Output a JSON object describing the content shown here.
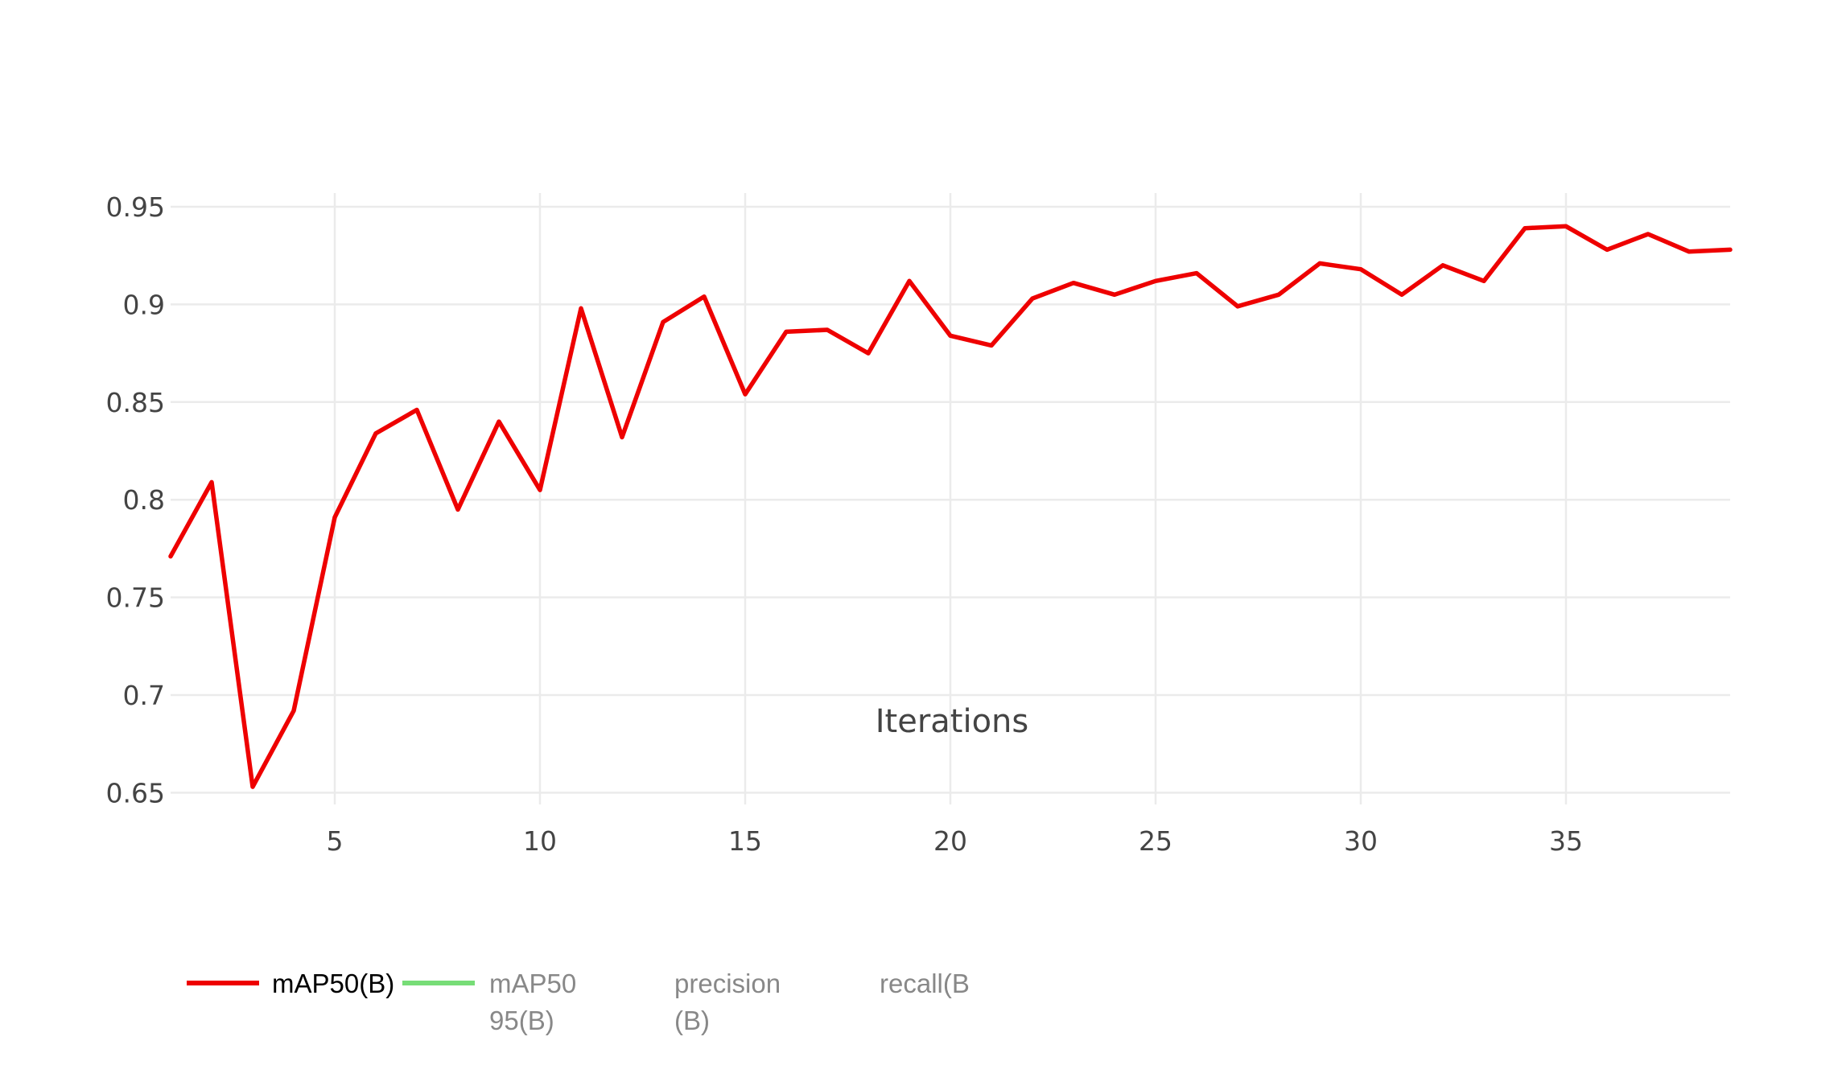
{
  "chart_data": {
    "type": "line",
    "xlabel": "Iterations",
    "ylabel": "",
    "xlim": [
      1,
      39
    ],
    "ylim": [
      0.644,
      0.957
    ],
    "x_ticks": [
      5,
      10,
      15,
      20,
      25,
      30,
      35
    ],
    "y_ticks": [
      0.65,
      0.7,
      0.75,
      0.8,
      0.85,
      0.9,
      0.95
    ],
    "x_tick_labels": [
      "5",
      "10",
      "15",
      "20",
      "25",
      "30",
      "35"
    ],
    "y_tick_labels": [
      "0.65",
      "0.7",
      "0.75",
      "0.8",
      "0.85",
      "0.9",
      "0.95"
    ],
    "grid": true,
    "legend_position": "bottom-left",
    "x": [
      1,
      2,
      3,
      4,
      5,
      6,
      7,
      8,
      9,
      10,
      11,
      12,
      13,
      14,
      15,
      16,
      17,
      18,
      19,
      20,
      21,
      22,
      23,
      24,
      25,
      26,
      27,
      28,
      29,
      30,
      31,
      32,
      33,
      34,
      35,
      36,
      37,
      38,
      39
    ],
    "series": [
      {
        "name": "mAP50(B)",
        "color": "#ee0000",
        "visible": true,
        "values": [
          0.771,
          0.809,
          0.653,
          0.692,
          0.791,
          0.834,
          0.846,
          0.795,
          0.84,
          0.805,
          0.898,
          0.832,
          0.891,
          0.904,
          0.854,
          0.886,
          0.887,
          0.875,
          0.912,
          0.884,
          0.879,
          0.903,
          0.911,
          0.905,
          0.912,
          0.916,
          0.899,
          0.905,
          0.921,
          0.918,
          0.905,
          0.92,
          0.912,
          0.939,
          0.94,
          0.928,
          0.936,
          0.927,
          0.928
        ]
      }
    ],
    "legend": [
      {
        "name": "mAP50(B)",
        "lines": [
          "mAP50(B)"
        ],
        "color": "#ee0000",
        "active": true
      },
      {
        "name": "mAP50-95(B)",
        "lines": [
          "mAP50",
          "95(B)"
        ],
        "color": "#77dd77",
        "active": false
      },
      {
        "name": "precision(B)",
        "lines": [
          "precision",
          "(B)"
        ],
        "color": "",
        "active": false
      },
      {
        "name": "recall(B",
        "lines": [
          "recall(B"
        ],
        "color": "",
        "active": false
      }
    ]
  }
}
